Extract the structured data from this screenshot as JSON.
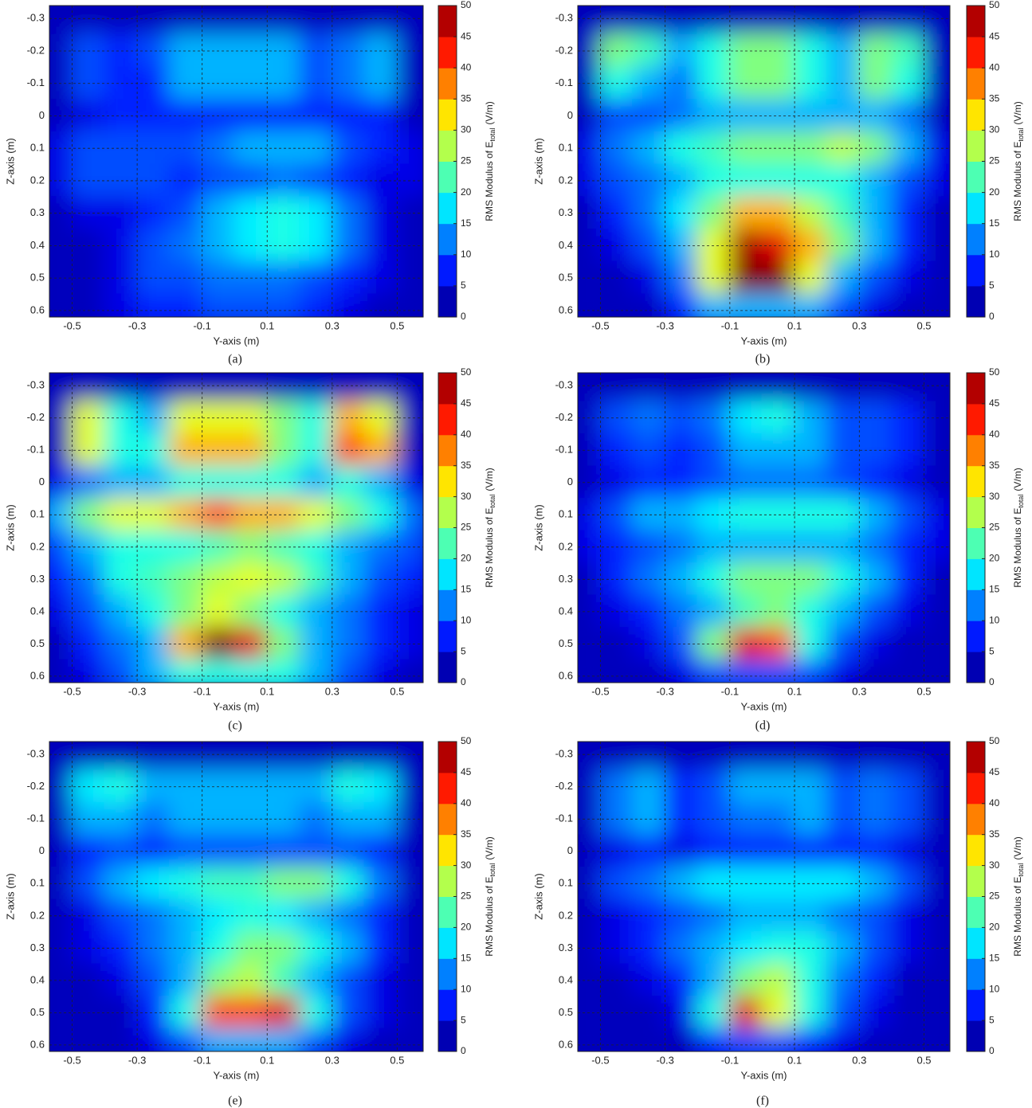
{
  "chart_data": [
    {
      "type": "contour",
      "caption": "(a)",
      "xlabel": "Y-axis (m)",
      "ylabel": "Z-axis (m)",
      "colorbar_label": {
        "text": "RMS Modulus of E",
        "subscript": "total",
        "unit": "(V/m)"
      },
      "colormap": "jet",
      "grid": true,
      "xlim": [
        -0.57,
        0.58
      ],
      "ylim": [
        -0.34,
        0.62
      ],
      "zlim": [
        0,
        50
      ],
      "xticks": [
        -0.5,
        -0.3,
        -0.1,
        0.1,
        0.3,
        0.5
      ],
      "yticks": [
        -0.3,
        -0.2,
        -0.1,
        0,
        0.1,
        0.2,
        0.3,
        0.4,
        0.5,
        0.6
      ],
      "zticks": [
        0,
        5,
        10,
        15,
        20,
        25,
        30,
        35,
        40,
        45,
        50
      ],
      "x": [
        -0.55,
        -0.45,
        -0.35,
        -0.25,
        -0.15,
        -0.05,
        0.05,
        0.15,
        0.25,
        0.35,
        0.45,
        0.55
      ],
      "y": [
        -0.3,
        -0.2,
        -0.1,
        0,
        0.1,
        0.2,
        0.3,
        0.4,
        0.5,
        0.6
      ],
      "z": [
        [
          3,
          3,
          3,
          3,
          3,
          3,
          3,
          3,
          3,
          3,
          3,
          3
        ],
        [
          3,
          10,
          8,
          10,
          15,
          15,
          15,
          15,
          10,
          12,
          15,
          3
        ],
        [
          3,
          10,
          8,
          8,
          15,
          15,
          15,
          15,
          10,
          12,
          15,
          3
        ],
        [
          3,
          5,
          8,
          8,
          8,
          8,
          8,
          8,
          8,
          8,
          8,
          3
        ],
        [
          5,
          10,
          10,
          10,
          10,
          12,
          15,
          15,
          15,
          10,
          8,
          5
        ],
        [
          5,
          10,
          10,
          10,
          8,
          10,
          10,
          12,
          10,
          8,
          5,
          5
        ],
        [
          3,
          5,
          5,
          8,
          10,
          15,
          18,
          20,
          18,
          12,
          5,
          3
        ],
        [
          3,
          3,
          5,
          10,
          12,
          15,
          18,
          20,
          18,
          12,
          5,
          3
        ],
        [
          3,
          3,
          5,
          10,
          10,
          12,
          12,
          12,
          10,
          8,
          5,
          3
        ],
        [
          3,
          3,
          5,
          8,
          8,
          10,
          10,
          10,
          8,
          5,
          3,
          3
        ]
      ]
    },
    {
      "type": "contour",
      "caption": "(b)",
      "xlabel": "Y-axis (m)",
      "ylabel": "Z-axis (m)",
      "colorbar_label": {
        "text": "RMS Modulus of E",
        "subscript": "total",
        "unit": "(V/m)"
      },
      "colormap": "jet",
      "grid": true,
      "xlim": [
        -0.57,
        0.58
      ],
      "ylim": [
        -0.34,
        0.62
      ],
      "zlim": [
        0,
        50
      ],
      "xticks": [
        -0.5,
        -0.3,
        -0.1,
        0.1,
        0.3,
        0.5
      ],
      "yticks": [
        -0.3,
        -0.2,
        -0.1,
        0,
        0.1,
        0.2,
        0.3,
        0.4,
        0.5,
        0.6
      ],
      "zticks": [
        0,
        5,
        10,
        15,
        20,
        25,
        30,
        35,
        40,
        45,
        50
      ],
      "x": [
        -0.55,
        -0.45,
        -0.35,
        -0.25,
        -0.15,
        -0.05,
        0.05,
        0.15,
        0.25,
        0.35,
        0.45,
        0.55
      ],
      "y": [
        -0.3,
        -0.2,
        -0.1,
        0,
        0.1,
        0.2,
        0.3,
        0.4,
        0.5,
        0.6
      ],
      "z": [
        [
          3,
          3,
          3,
          3,
          3,
          3,
          3,
          3,
          3,
          3,
          3,
          3
        ],
        [
          3,
          25,
          22,
          15,
          20,
          25,
          25,
          20,
          15,
          25,
          22,
          3
        ],
        [
          3,
          20,
          15,
          12,
          20,
          25,
          25,
          20,
          15,
          25,
          20,
          3
        ],
        [
          3,
          10,
          10,
          12,
          15,
          15,
          15,
          15,
          15,
          15,
          12,
          3
        ],
        [
          5,
          12,
          15,
          20,
          22,
          25,
          25,
          25,
          28,
          25,
          15,
          5
        ],
        [
          5,
          10,
          12,
          15,
          20,
          20,
          20,
          20,
          20,
          15,
          10,
          5
        ],
        [
          3,
          8,
          12,
          18,
          25,
          35,
          35,
          28,
          22,
          15,
          8,
          3
        ],
        [
          3,
          5,
          10,
          15,
          30,
          48,
          45,
          35,
          25,
          15,
          8,
          3
        ],
        [
          3,
          3,
          5,
          12,
          30,
          50,
          50,
          30,
          15,
          10,
          5,
          3
        ],
        [
          3,
          3,
          3,
          8,
          15,
          15,
          15,
          15,
          10,
          5,
          3,
          3
        ]
      ]
    },
    {
      "type": "contour",
      "caption": "(c)",
      "xlabel": "Y-axis (m)",
      "ylabel": "Z-axis (m)",
      "colorbar_label": {
        "text": "RMS Modulus of E",
        "subscript": "total",
        "unit": "(V/m)"
      },
      "colormap": "jet",
      "grid": true,
      "xlim": [
        -0.57,
        0.58
      ],
      "ylim": [
        -0.34,
        0.62
      ],
      "zlim": [
        0,
        50
      ],
      "xticks": [
        -0.5,
        -0.3,
        -0.1,
        0.1,
        0.3,
        0.5
      ],
      "yticks": [
        -0.3,
        -0.2,
        -0.1,
        0,
        0.1,
        0.2,
        0.3,
        0.4,
        0.5,
        0.6
      ],
      "zticks": [
        0,
        5,
        10,
        15,
        20,
        25,
        30,
        35,
        40,
        45,
        50
      ],
      "x": [
        -0.55,
        -0.45,
        -0.35,
        -0.25,
        -0.15,
        -0.05,
        0.05,
        0.15,
        0.25,
        0.35,
        0.45,
        0.55
      ],
      "y": [
        -0.3,
        -0.2,
        -0.1,
        0,
        0.1,
        0.2,
        0.3,
        0.4,
        0.5,
        0.6
      ],
      "z": [
        [
          3,
          3,
          3,
          3,
          3,
          3,
          3,
          3,
          3,
          3,
          3,
          3
        ],
        [
          3,
          30,
          20,
          15,
          30,
          30,
          30,
          25,
          20,
          35,
          30,
          3
        ],
        [
          3,
          30,
          20,
          20,
          35,
          35,
          35,
          25,
          20,
          40,
          35,
          3
        ],
        [
          5,
          12,
          15,
          15,
          20,
          20,
          20,
          20,
          15,
          20,
          15,
          5
        ],
        [
          15,
          25,
          30,
          30,
          35,
          40,
          35,
          35,
          30,
          25,
          20,
          12
        ],
        [
          10,
          15,
          20,
          20,
          20,
          22,
          25,
          22,
          20,
          15,
          12,
          10
        ],
        [
          8,
          12,
          20,
          22,
          25,
          28,
          30,
          28,
          22,
          15,
          10,
          8
        ],
        [
          5,
          10,
          15,
          20,
          25,
          30,
          25,
          20,
          15,
          12,
          8,
          5
        ],
        [
          3,
          8,
          12,
          15,
          35,
          50,
          45,
          25,
          15,
          12,
          8,
          5
        ],
        [
          3,
          5,
          10,
          15,
          20,
          20,
          20,
          20,
          15,
          10,
          5,
          3
        ]
      ]
    },
    {
      "type": "contour",
      "caption": "(d)",
      "xlabel": "Y-axis (m)",
      "ylabel": "Z-axis (m)",
      "colorbar_label": {
        "text": "RMS Modulus of E",
        "subscript": "total",
        "unit": "(V/m)"
      },
      "colormap": "jet",
      "grid": true,
      "xlim": [
        -0.57,
        0.58
      ],
      "ylim": [
        -0.34,
        0.62
      ],
      "zlim": [
        0,
        50
      ],
      "xticks": [
        -0.5,
        -0.3,
        -0.1,
        0.1,
        0.3,
        0.5
      ],
      "yticks": [
        -0.3,
        -0.2,
        -0.1,
        0,
        0.1,
        0.2,
        0.3,
        0.4,
        0.5,
        0.6
      ],
      "zticks": [
        0,
        5,
        10,
        15,
        20,
        25,
        30,
        35,
        40,
        45,
        50
      ],
      "x": [
        -0.55,
        -0.45,
        -0.35,
        -0.25,
        -0.15,
        -0.05,
        0.05,
        0.15,
        0.25,
        0.35,
        0.45,
        0.55
      ],
      "y": [
        -0.3,
        -0.2,
        -0.1,
        0,
        0.1,
        0.2,
        0.3,
        0.4,
        0.5,
        0.6
      ],
      "z": [
        [
          3,
          3,
          3,
          3,
          3,
          3,
          3,
          3,
          3,
          3,
          3,
          3
        ],
        [
          3,
          10,
          12,
          10,
          12,
          18,
          20,
          15,
          10,
          10,
          8,
          3
        ],
        [
          3,
          8,
          10,
          8,
          10,
          15,
          15,
          15,
          10,
          10,
          8,
          3
        ],
        [
          3,
          5,
          8,
          8,
          10,
          12,
          12,
          12,
          10,
          8,
          5,
          3
        ],
        [
          5,
          10,
          15,
          15,
          18,
          20,
          20,
          20,
          20,
          15,
          10,
          5
        ],
        [
          5,
          8,
          10,
          12,
          15,
          15,
          15,
          15,
          15,
          12,
          8,
          5
        ],
        [
          3,
          8,
          12,
          15,
          20,
          25,
          25,
          25,
          20,
          15,
          8,
          3
        ],
        [
          3,
          5,
          8,
          12,
          15,
          22,
          25,
          20,
          15,
          10,
          5,
          3
        ],
        [
          3,
          3,
          5,
          10,
          25,
          45,
          40,
          20,
          10,
          5,
          3,
          3
        ],
        [
          3,
          3,
          3,
          5,
          10,
          10,
          10,
          10,
          5,
          3,
          3,
          3
        ]
      ]
    },
    {
      "type": "contour",
      "caption": "(e)",
      "xlabel": "Y-axis (m)",
      "ylabel": "Z-axis (m)",
      "colorbar_label": {
        "text": "RMS Modulus of E",
        "subscript": "total",
        "unit": "(V/m)"
      },
      "colormap": "jet",
      "grid": true,
      "xlim": [
        -0.57,
        0.58
      ],
      "ylim": [
        -0.34,
        0.62
      ],
      "zlim": [
        0,
        50
      ],
      "xticks": [
        -0.5,
        -0.3,
        -0.1,
        0.1,
        0.3,
        0.5
      ],
      "yticks": [
        -0.3,
        -0.2,
        -0.1,
        0,
        0.1,
        0.2,
        0.3,
        0.4,
        0.5,
        0.6
      ],
      "zticks": [
        0,
        5,
        10,
        15,
        20,
        25,
        30,
        35,
        40,
        45,
        50
      ],
      "x": [
        -0.55,
        -0.45,
        -0.35,
        -0.25,
        -0.15,
        -0.05,
        0.05,
        0.15,
        0.25,
        0.35,
        0.45,
        0.55
      ],
      "y": [
        -0.3,
        -0.2,
        -0.1,
        0,
        0.1,
        0.2,
        0.3,
        0.4,
        0.5,
        0.6
      ],
      "z": [
        [
          3,
          3,
          3,
          3,
          3,
          3,
          3,
          3,
          3,
          3,
          3,
          3
        ],
        [
          3,
          18,
          20,
          15,
          15,
          15,
          15,
          15,
          15,
          20,
          18,
          3
        ],
        [
          3,
          15,
          15,
          12,
          15,
          15,
          15,
          15,
          12,
          15,
          15,
          3
        ],
        [
          3,
          8,
          10,
          8,
          10,
          10,
          10,
          10,
          10,
          10,
          8,
          3
        ],
        [
          3,
          10,
          15,
          18,
          20,
          22,
          22,
          25,
          25,
          20,
          12,
          3
        ],
        [
          3,
          5,
          10,
          12,
          15,
          18,
          20,
          18,
          15,
          12,
          8,
          3
        ],
        [
          3,
          5,
          8,
          12,
          15,
          20,
          25,
          25,
          20,
          15,
          8,
          3
        ],
        [
          3,
          3,
          5,
          10,
          15,
          25,
          28,
          22,
          15,
          10,
          5,
          3
        ],
        [
          3,
          3,
          3,
          8,
          20,
          40,
          40,
          45,
          20,
          10,
          5,
          3
        ],
        [
          3,
          3,
          3,
          5,
          10,
          15,
          15,
          15,
          10,
          5,
          3,
          3
        ]
      ]
    },
    {
      "type": "contour",
      "caption": "(f)",
      "xlabel": "Y-axis (m)",
      "ylabel": "Z-axis (m)",
      "colorbar_label": {
        "text": "RMS Modulus of E",
        "subscript": "total",
        "unit": "(V/m)"
      },
      "colormap": "jet",
      "grid": true,
      "xlim": [
        -0.57,
        0.58
      ],
      "ylim": [
        -0.34,
        0.62
      ],
      "zlim": [
        0,
        50
      ],
      "xticks": [
        -0.5,
        -0.3,
        -0.1,
        0.1,
        0.3,
        0.5
      ],
      "yticks": [
        -0.3,
        -0.2,
        -0.1,
        0,
        0.1,
        0.2,
        0.3,
        0.4,
        0.5,
        0.6
      ],
      "zticks": [
        0,
        5,
        10,
        15,
        20,
        25,
        30,
        35,
        40,
        45,
        50
      ],
      "x": [
        -0.55,
        -0.45,
        -0.35,
        -0.25,
        -0.15,
        -0.05,
        0.05,
        0.15,
        0.25,
        0.35,
        0.45,
        0.55
      ],
      "y": [
        -0.3,
        -0.2,
        -0.1,
        0,
        0.1,
        0.2,
        0.3,
        0.4,
        0.5,
        0.6
      ],
      "z": [
        [
          3,
          3,
          3,
          3,
          3,
          3,
          3,
          3,
          3,
          3,
          3,
          3
        ],
        [
          3,
          12,
          15,
          8,
          10,
          15,
          15,
          15,
          10,
          12,
          10,
          3
        ],
        [
          3,
          12,
          15,
          8,
          10,
          12,
          12,
          15,
          10,
          12,
          10,
          3
        ],
        [
          3,
          5,
          8,
          5,
          8,
          8,
          8,
          8,
          8,
          8,
          5,
          3
        ],
        [
          3,
          10,
          12,
          15,
          18,
          18,
          18,
          18,
          18,
          15,
          10,
          3
        ],
        [
          3,
          5,
          8,
          10,
          12,
          15,
          15,
          15,
          12,
          10,
          5,
          3
        ],
        [
          3,
          5,
          8,
          12,
          15,
          18,
          20,
          20,
          15,
          10,
          5,
          3
        ],
        [
          3,
          3,
          5,
          8,
          15,
          25,
          28,
          20,
          12,
          8,
          3,
          3
        ],
        [
          3,
          3,
          3,
          5,
          20,
          45,
          30,
          20,
          10,
          5,
          3,
          3
        ],
        [
          3,
          3,
          3,
          3,
          8,
          10,
          10,
          8,
          5,
          3,
          3,
          3
        ]
      ]
    }
  ]
}
